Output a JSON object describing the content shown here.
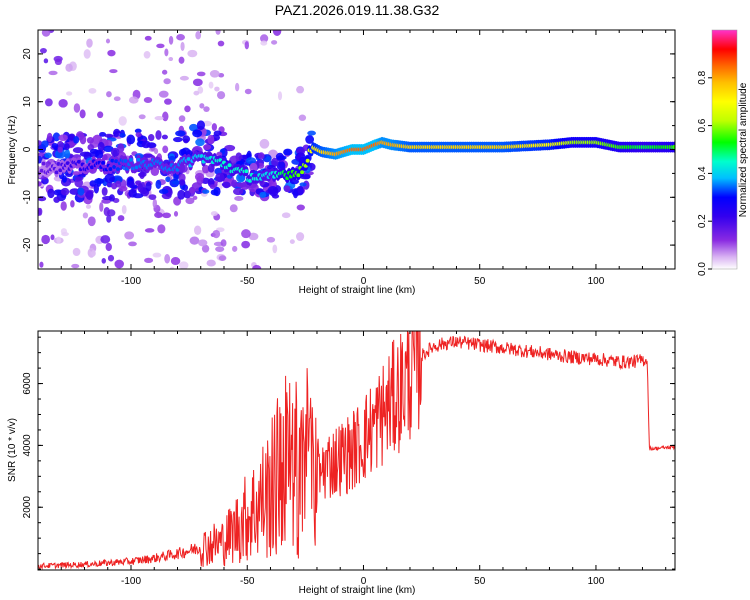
{
  "title": "PAZ1.2026.019.11.38.G32",
  "colors": {
    "snr_line": "#ee2222",
    "frame": "#000000",
    "colormap": [
      "#ffffff",
      "#d9b3f2",
      "#8a2be2",
      "#3300ee",
      "#0000ff",
      "#00bfff",
      "#00ffcc",
      "#00ff00",
      "#bfff00",
      "#ffff00",
      "#ffbf00",
      "#ff6600",
      "#ff0000",
      "#ff00aa",
      "#ff33cc"
    ]
  },
  "chart_data": [
    {
      "type": "heatmap",
      "name": "spectrogram",
      "xlabel": "Height of straight line (km)",
      "ylabel": "Frequency (Hz)",
      "xlim": [
        -140,
        134
      ],
      "ylim": [
        -25,
        25
      ],
      "xticks": [
        -100,
        -50,
        0,
        50,
        100
      ],
      "xtick_labels": [
        "-100",
        "-50",
        "0",
        "50",
        "100"
      ],
      "yticks": [
        -20,
        -10,
        0,
        10,
        20
      ],
      "ytick_labels": [
        "-20",
        "-10",
        "0",
        "10",
        "20"
      ],
      "ridge": {
        "x": [
          -140,
          -120,
          -100,
          -80,
          -70,
          -60,
          -50,
          -40,
          -35,
          -30,
          -25,
          -22,
          -18,
          -12,
          -5,
          0,
          5,
          8,
          12,
          20,
          40,
          60,
          80,
          90,
          100,
          110,
          120,
          134
        ],
        "freq": [
          -4,
          -3.5,
          -3,
          -3.5,
          -1.5,
          -3,
          -5.5,
          -6,
          -5,
          -5,
          -3.5,
          0.5,
          -0.5,
          -1,
          0,
          0,
          1,
          1.5,
          1,
          0.5,
          0.5,
          0.5,
          1,
          1.5,
          1.5,
          0.5,
          0.5,
          0.5
        ],
        "amplitude": [
          0.15,
          0.25,
          0.35,
          0.35,
          0.4,
          0.45,
          0.45,
          0.4,
          0.5,
          0.55,
          0.6,
          0.7,
          0.75,
          0.8,
          0.85,
          0.85,
          0.85,
          0.8,
          0.8,
          0.75,
          0.75,
          0.75,
          0.7,
          0.6,
          0.6,
          0.55,
          0.5,
          0.55
        ]
      },
      "colorbar": {
        "label": "Normalized spectral amplitude",
        "range": [
          0,
          1
        ],
        "ticks": [
          0.0,
          0.2,
          0.4,
          0.6,
          0.8
        ],
        "tick_labels": [
          "0.0",
          "0.2",
          "0.4",
          "0.6",
          "0.8"
        ]
      }
    },
    {
      "type": "line",
      "name": "snr",
      "xlabel": "Height of straight line (km)",
      "ylabel": "SNR (10 * v/v)",
      "xlim": [
        -140,
        134
      ],
      "ylim": [
        -30,
        7700
      ],
      "xticks": [
        -100,
        -50,
        0,
        50,
        100
      ],
      "xtick_labels": [
        "-100",
        "-50",
        "0",
        "50",
        "100"
      ],
      "yticks": [
        2000,
        4000,
        6000
      ],
      "ytick_labels": [
        "2000",
        "4000",
        "6000"
      ],
      "series": [
        {
          "name": "SNR",
          "x": [
            -140,
            -120,
            -100,
            -90,
            -80,
            -70,
            -60,
            -55,
            -50,
            -45,
            -40,
            -35,
            -30,
            -28,
            -25,
            -22,
            -20,
            -15,
            -10,
            -5,
            0,
            5,
            10,
            15,
            20,
            25,
            30,
            35,
            40,
            45,
            50,
            60,
            70,
            80,
            90,
            100,
            110,
            115,
            120,
            122,
            123,
            125,
            134
          ],
          "y": [
            100,
            150,
            250,
            350,
            500,
            700,
            900,
            1300,
            1700,
            2100,
            2500,
            3300,
            3700,
            2900,
            3500,
            3900,
            3200,
            3400,
            3600,
            3800,
            4200,
            4700,
            5200,
            5700,
            6300,
            6900,
            7200,
            7300,
            7350,
            7300,
            7250,
            7150,
            7050,
            6950,
            6850,
            6800,
            6700,
            6700,
            6750,
            6800,
            3900,
            3900,
            3950
          ]
        }
      ]
    }
  ]
}
